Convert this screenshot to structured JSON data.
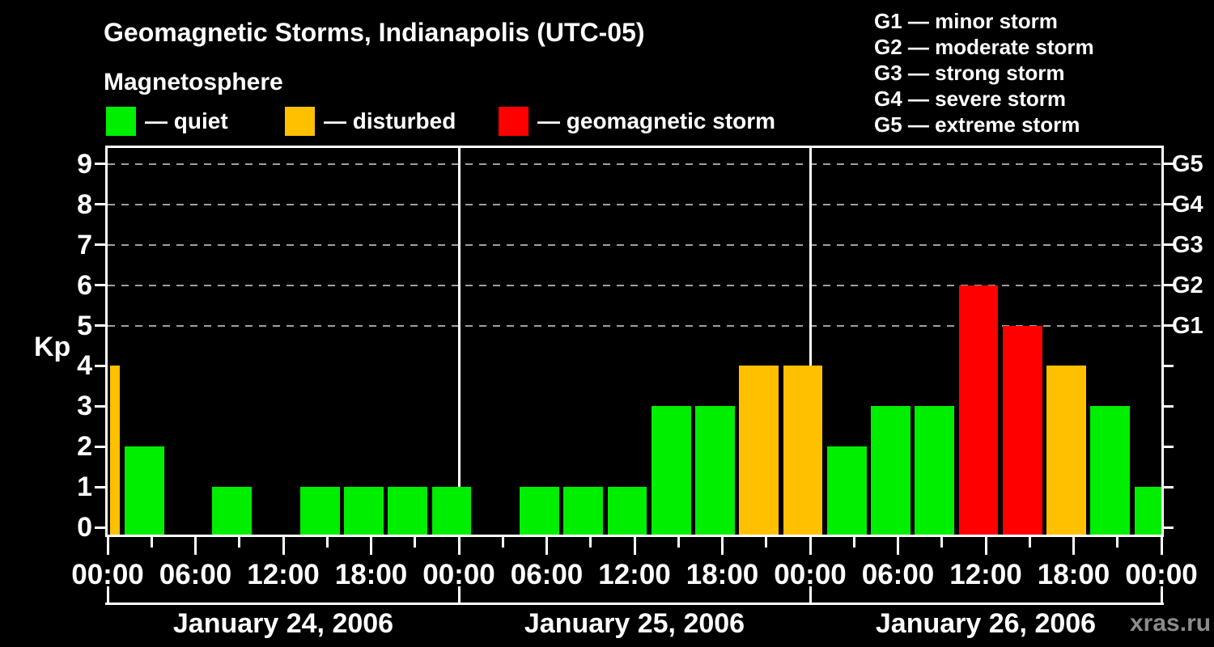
{
  "watermark": "xras.ru",
  "legend": {
    "heading": "Magnetosphere",
    "items": [
      {
        "key": "quiet",
        "label": "— quiet"
      },
      {
        "key": "disturbed",
        "label": "— disturbed"
      },
      {
        "key": "storm",
        "label": "— geomagnetic storm"
      }
    ]
  },
  "g_scale_legend": [
    "G1 — minor storm",
    "G2 — moderate storm",
    "G3 — strong storm",
    "G4 — severe storm",
    "G5 — extreme storm"
  ],
  "colors": {
    "background": "#000000",
    "axis": "#ffffff",
    "text": "#ffffff",
    "gridline": "#9f9f9f",
    "quiet": "#00ee00",
    "disturbed": "#ffc000",
    "storm": "#ff0000",
    "watermark": "#8c8c8c"
  },
  "chart_data": {
    "type": "bar",
    "title": "Geomagnetic Storms, Indianapolis (UTC-05)",
    "ylabel": "Kp",
    "ylim": [
      0,
      9.4
    ],
    "grid": "dashed horizontal lines at Kp 5-9 only",
    "legend_position": "top-left",
    "y_ticks": [
      0,
      1,
      2,
      3,
      4,
      5,
      6,
      7,
      8,
      9
    ],
    "right_axis": [
      {
        "label": "G1",
        "kp": 5
      },
      {
        "label": "G2",
        "kp": 6
      },
      {
        "label": "G3",
        "kp": 7
      },
      {
        "label": "G4",
        "kp": 8
      },
      {
        "label": "G5",
        "kp": 9
      }
    ],
    "gridline_kp_levels": [
      5,
      6,
      7,
      8,
      9
    ],
    "x_total_hours": 72,
    "x_minor_tick_hours": 3,
    "x_major_tick_hours": 6,
    "x_major_tick_labels": [
      "00:00",
      "06:00",
      "12:00",
      "18:00",
      "00:00",
      "06:00",
      "12:00",
      "18:00",
      "00:00",
      "06:00",
      "12:00",
      "18:00",
      "00:00"
    ],
    "day_separator_hours": [
      24,
      48
    ],
    "days": [
      {
        "date": "January 24, 2006",
        "start_hour": 0
      },
      {
        "date": "January 25, 2006",
        "start_hour": 24
      },
      {
        "date": "January 26, 2006",
        "start_hour": 48
      }
    ],
    "bars": [
      {
        "start_hour": 0,
        "end_hour": 1,
        "kp": 4,
        "status": "disturbed"
      },
      {
        "start_hour": 1,
        "end_hour": 4,
        "kp": 2,
        "status": "quiet"
      },
      {
        "start_hour": 4,
        "end_hour": 7,
        "kp": 0,
        "status": "quiet"
      },
      {
        "start_hour": 7,
        "end_hour": 10,
        "kp": 1,
        "status": "quiet"
      },
      {
        "start_hour": 10,
        "end_hour": 13,
        "kp": 0,
        "status": "quiet"
      },
      {
        "start_hour": 13,
        "end_hour": 16,
        "kp": 1,
        "status": "quiet"
      },
      {
        "start_hour": 16,
        "end_hour": 19,
        "kp": 1,
        "status": "quiet"
      },
      {
        "start_hour": 19,
        "end_hour": 22,
        "kp": 1,
        "status": "quiet"
      },
      {
        "start_hour": 22,
        "end_hour": 25,
        "kp": 1,
        "status": "quiet"
      },
      {
        "start_hour": 25,
        "end_hour": 28,
        "kp": 0,
        "status": "quiet"
      },
      {
        "start_hour": 28,
        "end_hour": 31,
        "kp": 1,
        "status": "quiet"
      },
      {
        "start_hour": 31,
        "end_hour": 34,
        "kp": 1,
        "status": "quiet"
      },
      {
        "start_hour": 34,
        "end_hour": 37,
        "kp": 1,
        "status": "quiet"
      },
      {
        "start_hour": 37,
        "end_hour": 40,
        "kp": 3,
        "status": "quiet"
      },
      {
        "start_hour": 40,
        "end_hour": 43,
        "kp": 3,
        "status": "quiet"
      },
      {
        "start_hour": 43,
        "end_hour": 46,
        "kp": 4,
        "status": "disturbed"
      },
      {
        "start_hour": 46,
        "end_hour": 49,
        "kp": 4,
        "status": "disturbed"
      },
      {
        "start_hour": 49,
        "end_hour": 52,
        "kp": 2,
        "status": "quiet"
      },
      {
        "start_hour": 52,
        "end_hour": 55,
        "kp": 3,
        "status": "quiet"
      },
      {
        "start_hour": 55,
        "end_hour": 58,
        "kp": 3,
        "status": "quiet"
      },
      {
        "start_hour": 58,
        "end_hour": 61,
        "kp": 6,
        "status": "storm"
      },
      {
        "start_hour": 61,
        "end_hour": 64,
        "kp": 5,
        "status": "storm"
      },
      {
        "start_hour": 64,
        "end_hour": 67,
        "kp": 4,
        "status": "disturbed"
      },
      {
        "start_hour": 67,
        "end_hour": 70,
        "kp": 3,
        "status": "quiet"
      },
      {
        "start_hour": 70,
        "end_hour": 73,
        "kp": 1,
        "status": "quiet"
      }
    ]
  }
}
